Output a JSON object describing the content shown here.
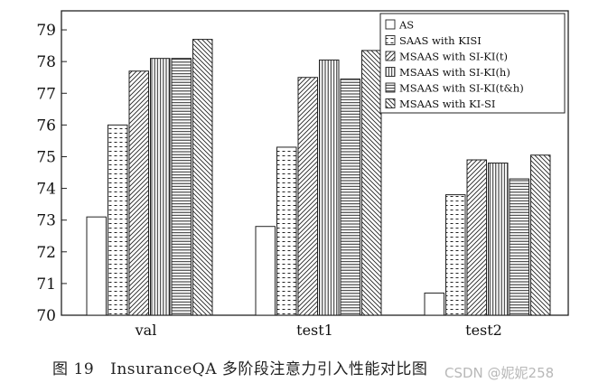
{
  "chart_data": {
    "type": "bar",
    "title": "",
    "xlabel": "",
    "ylabel": "",
    "ylim": [
      70,
      79.6
    ],
    "yticks": [
      70,
      71,
      72,
      73,
      74,
      75,
      76,
      77,
      78,
      79
    ],
    "categories": [
      "val",
      "test1",
      "test2"
    ],
    "series": [
      {
        "name": "AS",
        "pattern": "blank",
        "values": [
          73.1,
          72.8,
          70.7
        ]
      },
      {
        "name": "SAAS with KISI",
        "pattern": "dash",
        "values": [
          76.0,
          75.3,
          73.8
        ]
      },
      {
        "name": "MSAAS with SI-KI(t)",
        "pattern": "diag",
        "values": [
          77.7,
          77.5,
          74.9
        ]
      },
      {
        "name": "MSAAS with SI-KI(h)",
        "pattern": "vert",
        "values": [
          78.1,
          78.05,
          74.8
        ]
      },
      {
        "name": "MSAAS with SI-KI(t&h)",
        "pattern": "horiz",
        "values": [
          78.1,
          77.45,
          74.3
        ]
      },
      {
        "name": "MSAAS with KI-SI",
        "pattern": "cross",
        "values": [
          78.7,
          78.35,
          75.05
        ]
      }
    ],
    "legend_position": "top-right",
    "grid": false
  },
  "caption": {
    "figure_label": "图",
    "figure_number": "19",
    "text": "InsuranceQA 多阶段注意力引入性能对比图"
  },
  "watermark": "CSDN @妮妮258"
}
